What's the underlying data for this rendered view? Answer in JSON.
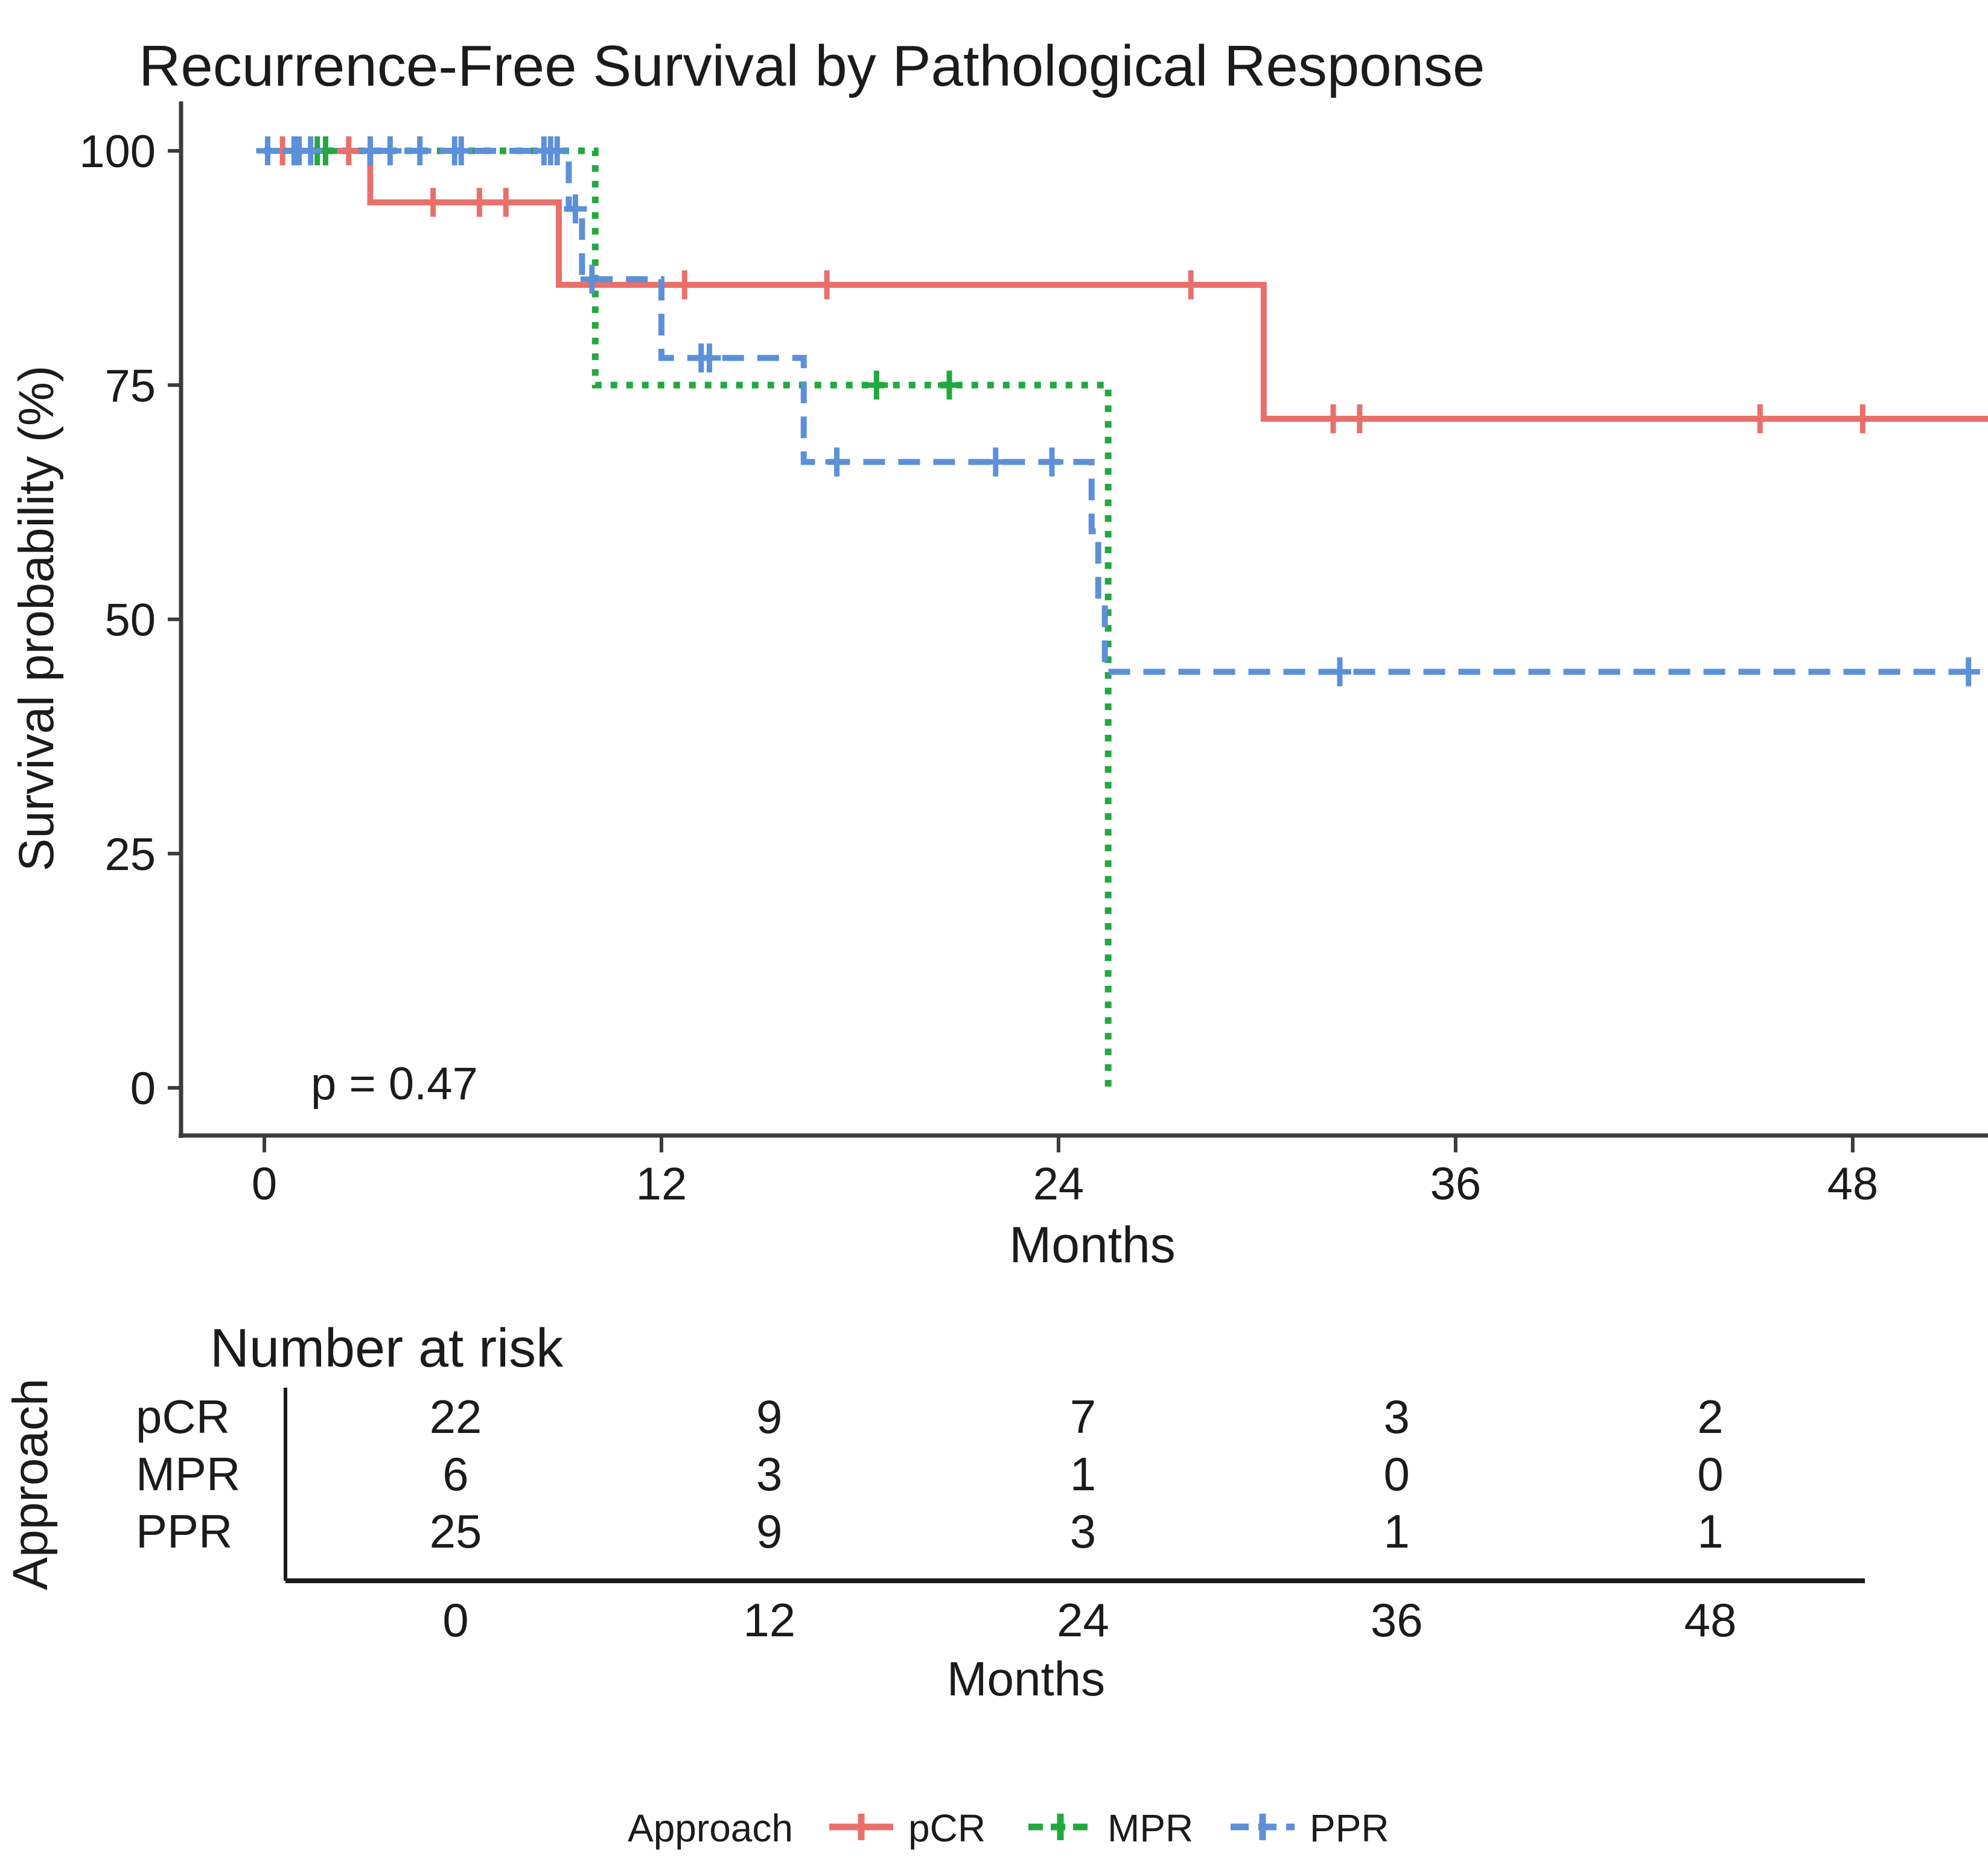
{
  "title": "Recurrence-Free Survival by Pathological Response",
  "p_value": "p = 0.47",
  "axes": {
    "y_label": "Survival probability (%)",
    "x_label": "Months",
    "y_ticks": [
      100,
      75,
      50,
      25,
      0
    ],
    "x_ticks": [
      0,
      12,
      24,
      36,
      48
    ],
    "x_max": 52.2
  },
  "colors": {
    "pCR": "#E9706A",
    "MPR": "#23A83E",
    "PPR": "#5C90D8",
    "axis": "#3C3C3C",
    "text": "#1B1B1B"
  },
  "chart_data": {
    "type": "line",
    "subtype": "kaplan-meier-step",
    "title": "Recurrence-Free Survival by Pathological Response",
    "xlabel": "Months",
    "ylabel": "Survival probability (%)",
    "xlim": [
      0,
      52.2
    ],
    "ylim": [
      0,
      100
    ],
    "grid": false,
    "p_value_annotation": "p = 0.47",
    "legend_position": "bottom",
    "series": [
      {
        "name": "pCR",
        "color": "#E9706A",
        "style": "solid",
        "extend_to": 52.2,
        "points": [
          [
            0,
            100
          ],
          [
            3.2,
            94.5
          ],
          [
            8.9,
            85.7
          ],
          [
            30.2,
            71.4
          ]
        ],
        "censors": [
          [
            0.55,
            100
          ],
          [
            2.55,
            100
          ],
          [
            5.1,
            94.5
          ],
          [
            6.5,
            94.5
          ],
          [
            7.3,
            94.5
          ],
          [
            12.7,
            85.7
          ],
          [
            17.0,
            85.7
          ],
          [
            28.0,
            85.7
          ],
          [
            32.3,
            71.4
          ],
          [
            33.1,
            71.4
          ],
          [
            45.2,
            71.4
          ],
          [
            48.3,
            71.4
          ]
        ]
      },
      {
        "name": "MPR",
        "color": "#23A83E",
        "style": "dotted",
        "extend_to": null,
        "points": [
          [
            0,
            100
          ],
          [
            10.0,
            75
          ],
          [
            25.5,
            0
          ]
        ],
        "censors": [
          [
            1.6,
            100
          ],
          [
            1.85,
            100
          ],
          [
            18.5,
            75
          ],
          [
            20.7,
            75
          ]
        ]
      },
      {
        "name": "PPR",
        "color": "#5C90D8",
        "style": "dashed",
        "extend_to": 51.6,
        "points": [
          [
            0,
            100
          ],
          [
            9.2,
            93.8
          ],
          [
            9.6,
            86.3
          ],
          [
            12,
            77.9
          ],
          [
            16.3,
            66.8
          ],
          [
            25.0,
            59.4
          ],
          [
            25.2,
            51.9
          ],
          [
            25.4,
            44.4
          ]
        ],
        "censors": [
          [
            0.1,
            100
          ],
          [
            0.9,
            100
          ],
          [
            1.05,
            100
          ],
          [
            1.4,
            100
          ],
          [
            3.2,
            100
          ],
          [
            3.8,
            100
          ],
          [
            4.7,
            100
          ],
          [
            5.75,
            100
          ],
          [
            5.95,
            100
          ],
          [
            8.45,
            100
          ],
          [
            8.65,
            100
          ],
          [
            8.85,
            100
          ],
          [
            9.4,
            93.8
          ],
          [
            9.9,
            86.3
          ],
          [
            13.2,
            77.9
          ],
          [
            13.45,
            77.9
          ],
          [
            17.3,
            66.8
          ],
          [
            22.1,
            66.8
          ],
          [
            23.8,
            66.8
          ],
          [
            32.5,
            44.4
          ],
          [
            51.5,
            44.4
          ]
        ]
      }
    ]
  },
  "risk_table": {
    "header": "Number at risk",
    "axis_label": "Approach",
    "x_label": "Months",
    "x_ticks": [
      0,
      12,
      24,
      36,
      48
    ],
    "rows": [
      {
        "label": "pCR",
        "values": [
          "22",
          "9",
          "7",
          "3",
          "2"
        ]
      },
      {
        "label": "MPR",
        "values": [
          "6",
          "3",
          "1",
          "0",
          "0"
        ]
      },
      {
        "label": "PPR",
        "values": [
          "25",
          "9",
          "3",
          "1",
          "1"
        ]
      }
    ]
  },
  "legend": {
    "title": "Approach",
    "entries": [
      {
        "label": "pCR",
        "style": "solid",
        "color": "#E9706A"
      },
      {
        "label": "MPR",
        "style": "dotted",
        "color": "#23A83E"
      },
      {
        "label": "PPR",
        "style": "dashed",
        "color": "#5C90D8"
      }
    ]
  }
}
